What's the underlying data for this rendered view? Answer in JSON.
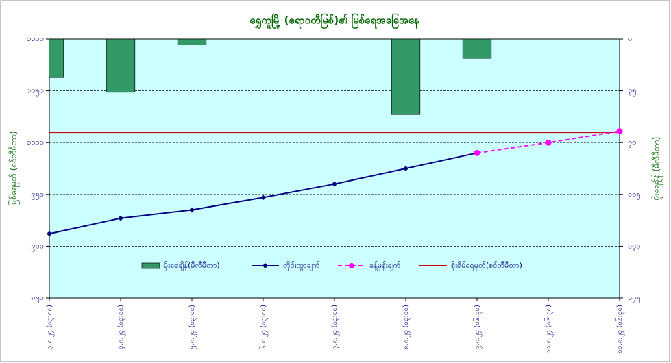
{
  "chart_data": {
    "type": "combo",
    "title": "ရွှေကူမြို့ (ဧရာဝတီမြစ်)၏ မြစ်ရေအခြေအနေ",
    "y_label": "မြစ်ရေမှတ် (စင်တီမီတာ)",
    "y2_label": "မိုးရေချိန် (မီလီမီတာ)",
    "categories": [
      "၃.၈.၂၄ (၀၃:၀၀)",
      "၄.၈.၂၄ (၀၃:၀၀)",
      "၅.၈.၂၄ (၀၃:၀၀)",
      "၆.၈.၂၄ (၀၃:၀၀)",
      "၇.၈.၂၄ (၀၃:၀၀)",
      "၈.၈.၂၄ (၀၃:၀၀)",
      "၉.၈.၂၄ (၀၆:၃၀)",
      "၁၀.၈.၂၄ (၀၆:၃၀)",
      "၁၁.၈.၂၄ (၀၆:၃၀)"
    ],
    "ylim": [
      850,
      1100
    ],
    "yticks": [
      {
        "value": 850,
        "label": "၈၅၀"
      },
      {
        "value": 900,
        "label": "၉၀၀"
      },
      {
        "value": 950,
        "label": "၉၅၀"
      },
      {
        "value": 1000,
        "label": "၁၀၀၀"
      },
      {
        "value": 1050,
        "label": "၁၀၅၀"
      },
      {
        "value": 1100,
        "label": "၁၁၀၀"
      }
    ],
    "y2lim": [
      175,
      0
    ],
    "y2ticks": [
      {
        "value": 0,
        "label": "၀"
      },
      {
        "value": 35,
        "label": "၃၅"
      },
      {
        "value": 70,
        "label": "၇၀"
      },
      {
        "value": 105,
        "label": "၁၀၅"
      },
      {
        "value": 140,
        "label": "၁၄၀"
      },
      {
        "value": 175,
        "label": "၁၇၅"
      }
    ],
    "grid": true,
    "series": [
      {
        "name": "မိုးရေချိန်(မီလီမီတာ)",
        "kind": "bar",
        "axis": "y2",
        "color": "#339966",
        "values": [
          26,
          36,
          4,
          0,
          0,
          51,
          13,
          0,
          0
        ]
      },
      {
        "name": "တိုင်းထွာချက်",
        "kind": "line",
        "color": "#000080",
        "values": [
          912,
          927,
          935,
          947,
          960,
          975,
          990,
          null,
          null
        ]
      },
      {
        "name": "ခန့်မှန်းချက်",
        "kind": "forecast",
        "color": "#ff00ff",
        "values": [
          null,
          null,
          null,
          null,
          null,
          null,
          990,
          1000,
          1011
        ]
      },
      {
        "name": "စိုးရိမ်ရေမှတ်(စင်တီမီတာ)",
        "kind": "hline",
        "color": "#cc0000",
        "value": 1010
      }
    ]
  }
}
